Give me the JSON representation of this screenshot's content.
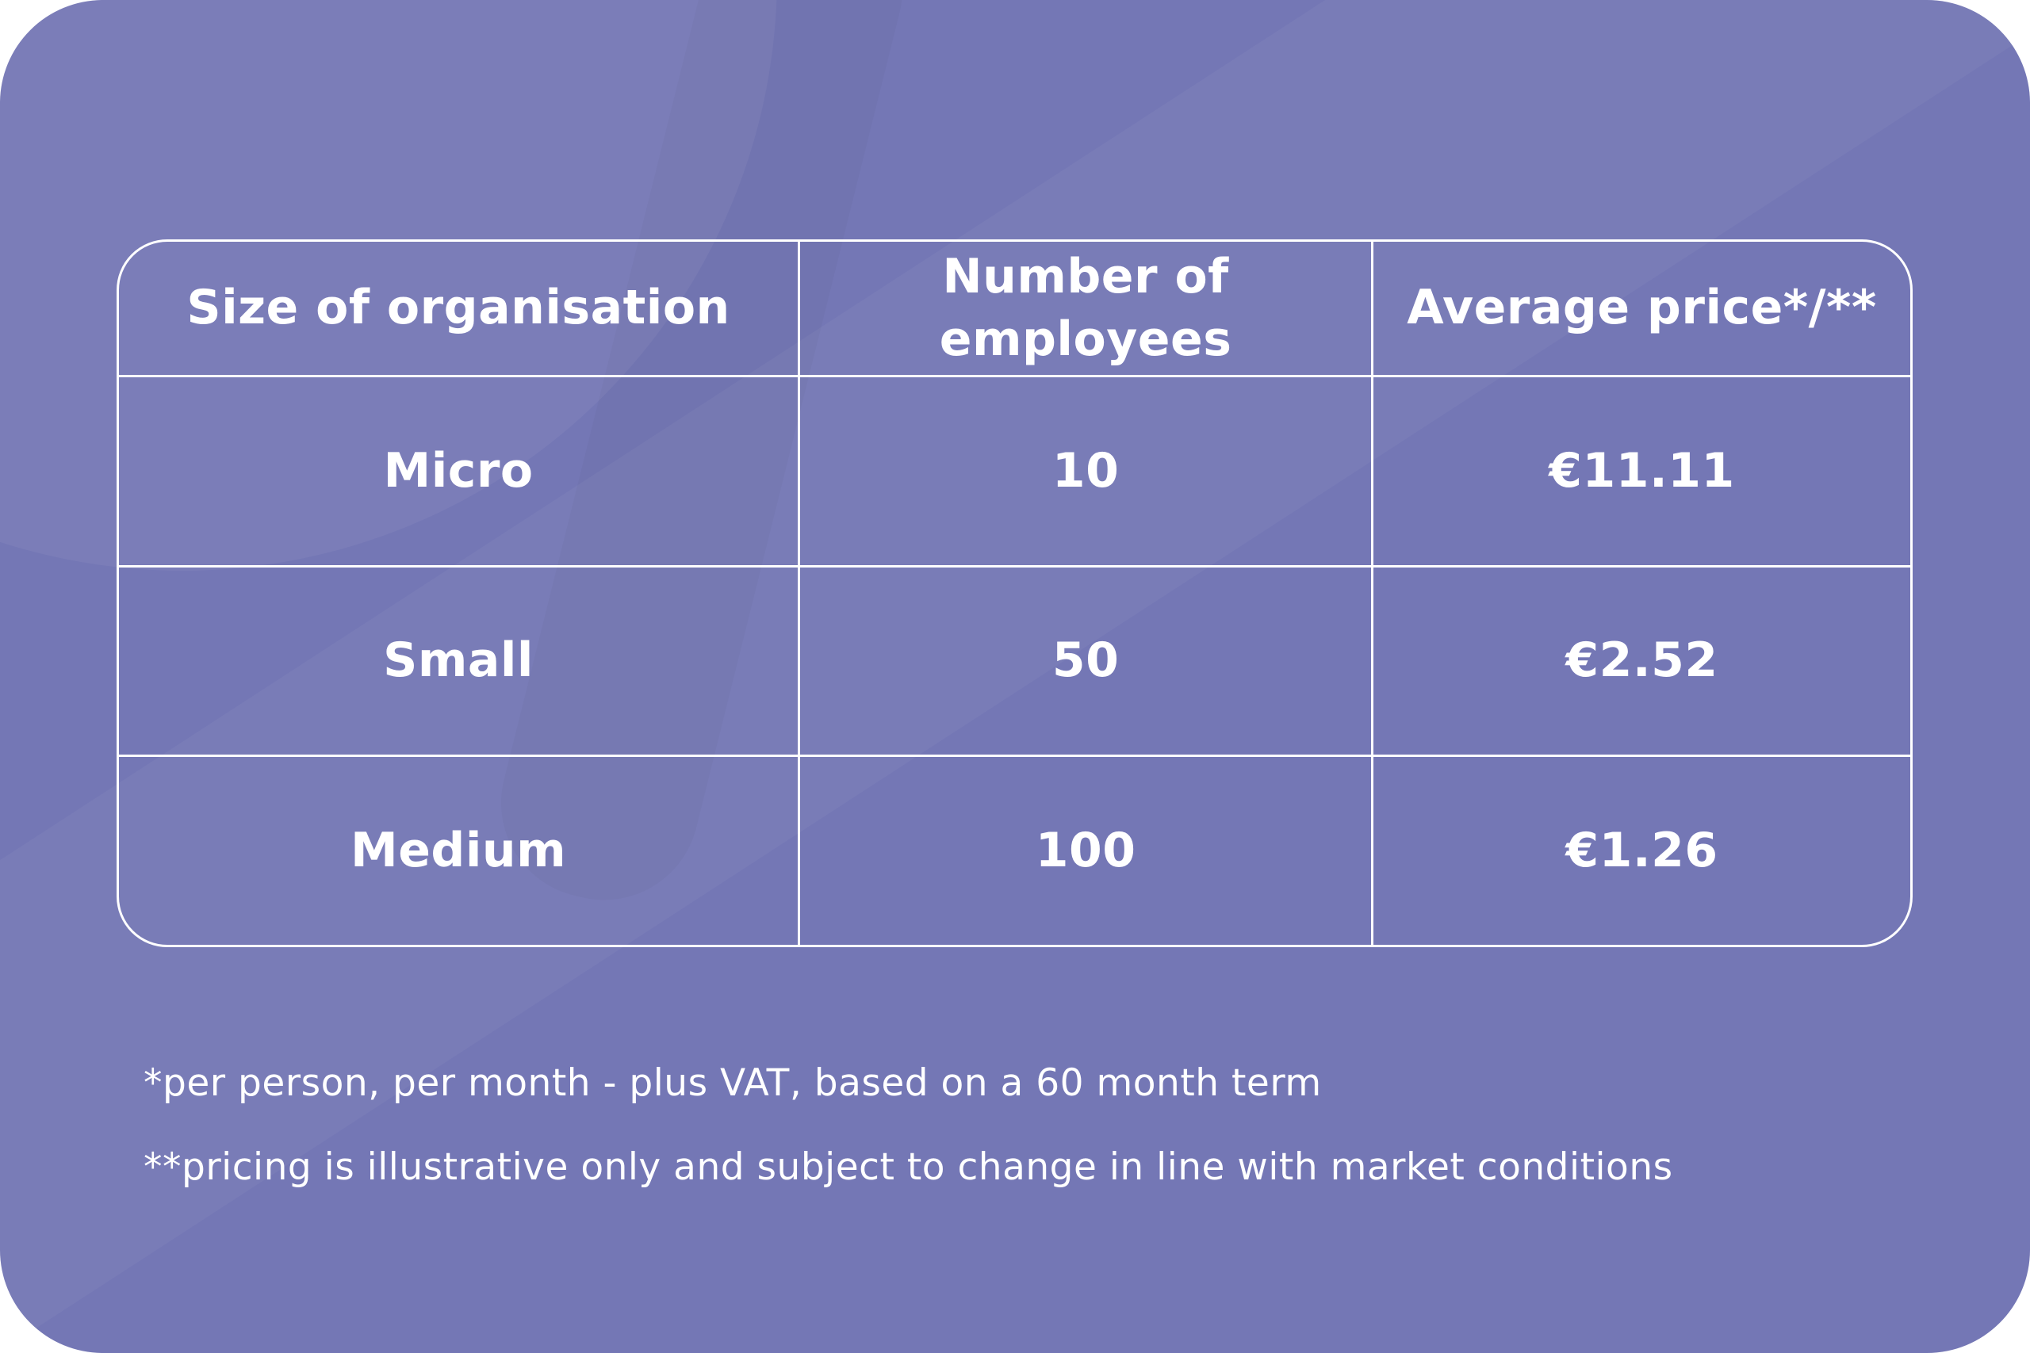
{
  "chart_data": {
    "type": "table",
    "columns": [
      "Size of organisation",
      "Number of employees",
      "Average price*/**"
    ],
    "rows": [
      [
        "Micro",
        "10",
        "€11.11"
      ],
      [
        "Small",
        "50",
        "€2.52"
      ],
      [
        "Medium",
        "100",
        "€1.26"
      ]
    ],
    "footnotes": [
      "*per person, per month - plus VAT, based on a 60 month term",
      "**pricing is illustrative only and subject to change in line with market conditions"
    ]
  },
  "colors": {
    "card_background": "#7477b5",
    "table_line": "#ffffff",
    "text": "#ffffff"
  }
}
